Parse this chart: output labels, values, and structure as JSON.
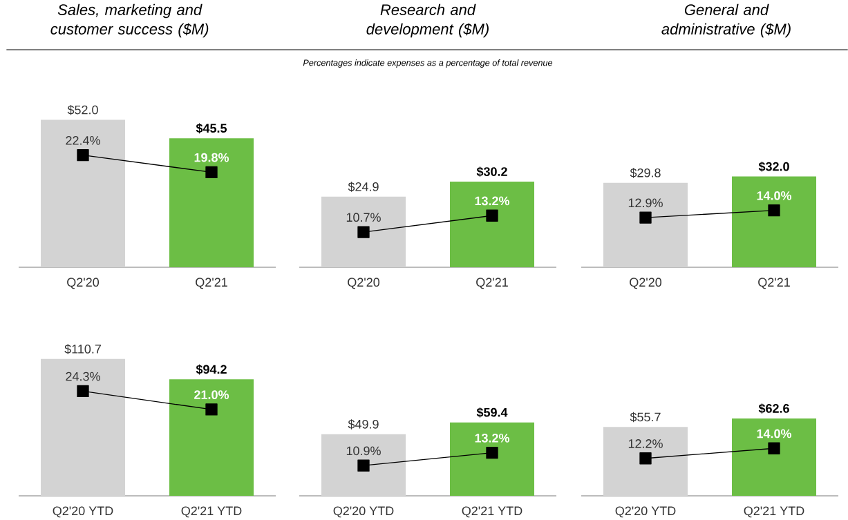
{
  "chart_data": [
    {
      "type": "bar",
      "title": "Sales, marketing and customer success ($M)",
      "categories": [
        "Q2'20",
        "Q2'21"
      ],
      "tick_labels": "x",
      "series": [
        {
          "colors": [
            "#d3d3d3",
            "#6cbe45"
          ],
          "values": [
            52.0,
            45.5
          ],
          "value_labels": [
            "$52.0",
            "$45.5"
          ]
        },
        {
          "type": "line",
          "axis": "y2",
          "color": "#000000",
          "marker": "square",
          "line_style": "solid",
          "values": [
            22.4,
            19.8
          ],
          "value_labels": [
            "22.4%",
            "19.8%"
          ]
        }
      ]
    },
    {
      "type": "bar",
      "title": "Research and development ($M)",
      "subtitle": "Percentages indicate expenses as a percentage of total revenue",
      "categories": [
        "Q2'20",
        "Q2'21"
      ],
      "tick_labels": "x",
      "series": [
        {
          "colors": [
            "#d3d3d3",
            "#6cbe45"
          ],
          "values": [
            24.9,
            30.2
          ],
          "value_labels": [
            "$24.9",
            "$30.2"
          ]
        },
        {
          "type": "line",
          "axis": "y2",
          "color": "#000000",
          "marker": "square",
          "line_style": "solid",
          "values": [
            10.7,
            13.2
          ],
          "value_labels": [
            "10.7%",
            "13.2%"
          ]
        }
      ]
    },
    {
      "type": "bar",
      "title": "General and administrative ($M)",
      "categories": [
        "Q2'20",
        "Q2'21"
      ],
      "tick_labels": "x",
      "series": [
        {
          "colors": [
            "#d3d3d3",
            "#6cbe45"
          ],
          "values": [
            29.8,
            32.0
          ],
          "value_labels": [
            "$29.8",
            "$32.0"
          ]
        },
        {
          "type": "line",
          "axis": "y2",
          "color": "#000000",
          "marker": "square",
          "line_style": "solid",
          "values": [
            12.9,
            14.0
          ],
          "value_labels": [
            "12.9%",
            "14.0%"
          ]
        }
      ]
    },
    {
      "type": "bar",
      "categories": [
        "Q2'20 YTD",
        "Q2'21 YTD"
      ],
      "tick_labels": "x",
      "series": [
        {
          "colors": [
            "#d3d3d3",
            "#6cbe45"
          ],
          "values": [
            110.7,
            94.2
          ],
          "value_labels": [
            "$110.7",
            "$94.2"
          ]
        },
        {
          "type": "line",
          "axis": "y2",
          "color": "#000000",
          "marker": "square",
          "line_style": "solid",
          "values": [
            24.3,
            21.0
          ],
          "value_labels": [
            "24.3%",
            "21.0%"
          ]
        }
      ]
    },
    {
      "type": "bar",
      "categories": [
        "Q2'20 YTD",
        "Q2'21 YTD"
      ],
      "tick_labels": "x",
      "series": [
        {
          "colors": [
            "#d3d3d3",
            "#6cbe45"
          ],
          "values": [
            49.9,
            59.4
          ],
          "value_labels": [
            "$49.9",
            "$59.4"
          ]
        },
        {
          "type": "line",
          "axis": "y2",
          "color": "#000000",
          "marker": "square",
          "line_style": "solid",
          "values": [
            10.9,
            13.2
          ],
          "value_labels": [
            "10.9%",
            "13.2%"
          ]
        }
      ]
    },
    {
      "type": "bar",
      "categories": [
        "Q2'20 YTD",
        "Q2'21 YTD"
      ],
      "tick_labels": "x",
      "series": [
        {
          "colors": [
            "#d3d3d3",
            "#6cbe45"
          ],
          "values": [
            55.7,
            62.6
          ],
          "value_labels": [
            "$55.7",
            "$62.6"
          ]
        },
        {
          "type": "line",
          "axis": "y2",
          "color": "#000000",
          "marker": "square",
          "line_style": "solid",
          "values": [
            12.2,
            14.0
          ],
          "value_labels": [
            "12.2%",
            "14.0%"
          ]
        }
      ]
    }
  ]
}
